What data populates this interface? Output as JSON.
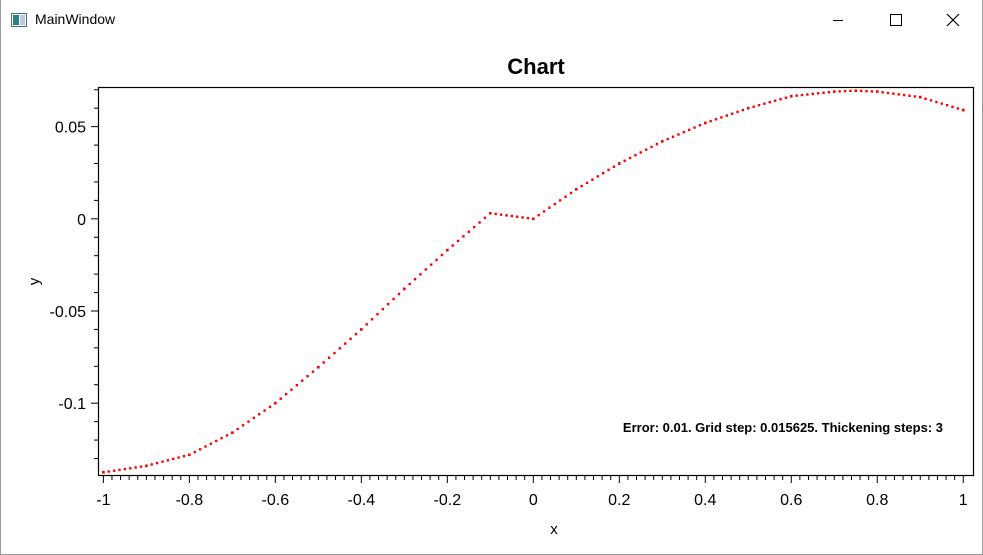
{
  "window": {
    "title": "MainWindow",
    "buttons": {
      "minimize": "minimize-icon",
      "maximize": "maximize-icon",
      "close": "close-icon"
    }
  },
  "chart_data": {
    "type": "scatter",
    "title": "Chart",
    "xlabel": "x",
    "ylabel": "y",
    "xlim": [
      -1.0125,
      1.025
    ],
    "ylim": [
      -0.1395,
      0.0715
    ],
    "x_ticks": [
      -1,
      -0.8,
      -0.6,
      -0.4,
      -0.2,
      0,
      0.2,
      0.4,
      0.6,
      0.8,
      1
    ],
    "x_tick_labels": [
      "-1",
      "-0.8",
      "-0.6",
      "-0.4",
      "-0.2",
      "0",
      "0.2",
      "0.4",
      "0.6",
      "0.8",
      "1"
    ],
    "y_ticks": [
      0.05,
      0,
      -0.05,
      -0.1
    ],
    "y_tick_labels": [
      "0.05",
      "0",
      "-0.05",
      "-0.1"
    ],
    "grid": false,
    "marker_color": "#ff0000",
    "series": [
      {
        "x": [
          -1,
          -0.9,
          -0.8,
          -0.7,
          -0.6,
          -0.5,
          -0.4,
          -0.3,
          -0.2,
          -0.1,
          0,
          0.1,
          0.2,
          0.3,
          0.4,
          0.5,
          0.6,
          0.7,
          0.75,
          0.8,
          0.9,
          1
        ],
        "values": [
          -0.1375,
          -0.134,
          -0.128,
          -0.116,
          -0.1,
          -0.0805,
          -0.06,
          -0.038,
          -0.017,
          0.003,
          0.0,
          0.016,
          0.03,
          0.042,
          0.052,
          0.06,
          0.0665,
          0.069,
          0.0695,
          0.069,
          0.066,
          0.059
        ]
      }
    ],
    "annotation": "Error: 0.01. Grid step: 0.015625. Thickening steps: 3"
  }
}
